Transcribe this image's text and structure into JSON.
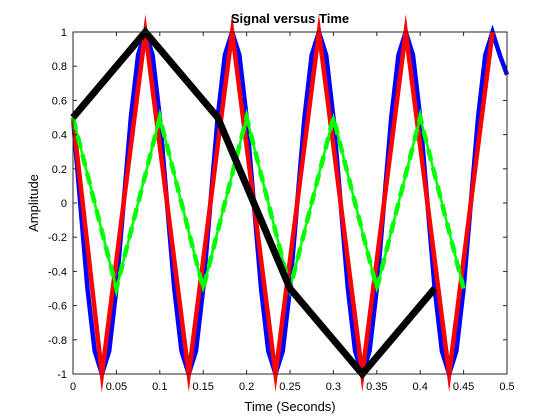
{
  "chart_data": {
    "type": "line",
    "title": "Signal versus Time",
    "xlabel": "Time (Seconds)",
    "ylabel": "Amplitude",
    "xlim": [
      0,
      0.5
    ],
    "ylim": [
      -1,
      1
    ],
    "xticks": [
      0,
      0.05,
      0.1,
      0.15,
      0.2,
      0.25,
      0.3,
      0.35,
      0.4,
      0.45,
      0.5
    ],
    "xtick_labels": [
      "0",
      "0.05",
      "0.1",
      "0.15",
      "0.2",
      "0.25",
      "0.3",
      "0.35",
      "0.4",
      "0.45",
      "0.5"
    ],
    "yticks": [
      -1,
      -0.8,
      -0.6,
      -0.4,
      -0.2,
      0,
      0.2,
      0.4,
      0.6,
      0.8,
      1
    ],
    "ytick_labels": [
      "-1",
      "-0.8",
      "-0.6",
      "-0.4",
      "-0.2",
      "0",
      "0.2",
      "0.4",
      "0.6",
      "0.8",
      "1"
    ],
    "grid": false,
    "legend": "none",
    "series": [
      {
        "color": "#0000ff",
        "style": "solid",
        "weight": "thick",
        "x": [
          0,
          0.00833,
          0.01667,
          0.025,
          0.03333,
          0.04167,
          0.05,
          0.05833,
          0.06667,
          0.075,
          0.08333,
          0.09167,
          0.1,
          0.10833,
          0.11667,
          0.125,
          0.13333,
          0.14167,
          0.15,
          0.15833,
          0.16667,
          0.175,
          0.18333,
          0.19167,
          0.2,
          0.20833,
          0.21667,
          0.225,
          0.23333,
          0.24167,
          0.25,
          0.25833,
          0.26667,
          0.275,
          0.28333,
          0.29167,
          0.3,
          0.30833,
          0.31667,
          0.325,
          0.33333,
          0.34167,
          0.35,
          0.35833,
          0.36667,
          0.375,
          0.38333,
          0.39167,
          0.4,
          0.40833,
          0.41667,
          0.425,
          0.43333,
          0.44167,
          0.45,
          0.45833,
          0.46667,
          0.475,
          0.48333,
          0.49167,
          0.5
        ],
        "y": [
          0.5,
          0,
          -0.5,
          -0.866,
          -1,
          -0.866,
          -0.5,
          0,
          0.5,
          0.866,
          1,
          0.866,
          0.5,
          0,
          -0.5,
          -0.866,
          -1,
          -0.866,
          -0.5,
          0,
          0.5,
          0.866,
          1,
          0.866,
          0.5,
          0,
          -0.5,
          -0.866,
          -1,
          -0.866,
          -0.5,
          0,
          0.5,
          0.866,
          1,
          0.866,
          0.5,
          0,
          -0.5,
          -0.866,
          -1,
          -0.866,
          -0.5,
          0,
          0.5,
          0.866,
          1,
          0.866,
          0.5,
          0,
          -0.5,
          -0.866,
          -1,
          -0.866,
          -0.5,
          0,
          0.5,
          0.866,
          1,
          0.866,
          0.75
        ]
      },
      {
        "color": "#ff0000",
        "style": "solid",
        "weight": "thick",
        "x": [
          0,
          0.03333,
          0.08333,
          0.13333,
          0.18333,
          0.23333,
          0.28333,
          0.33333,
          0.38333,
          0.43333,
          0.48333
        ],
        "y": [
          0.5,
          -1,
          1,
          -1,
          1,
          -1,
          1,
          -1,
          1,
          -1,
          1
        ]
      },
      {
        "color": "#00ff00",
        "style": "solid",
        "weight": "normal",
        "x": [
          0,
          0.05,
          0.1,
          0.15,
          0.2,
          0.25,
          0.3,
          0.35,
          0.4,
          0.45
        ],
        "y": [
          0.5,
          -0.5,
          0.5,
          -0.5,
          0.5,
          -0.5,
          0.5,
          -0.5,
          0.5,
          -0.5
        ]
      },
      {
        "color": "#00ff00",
        "style": "dashed",
        "weight": "thick",
        "x": [
          0,
          0.05,
          0.1,
          0.15,
          0.2,
          0.25,
          0.3,
          0.35,
          0.4,
          0.45
        ],
        "y": [
          0.5,
          -0.5,
          0.5,
          -0.5,
          0.5,
          -0.5,
          0.5,
          -0.5,
          0.5,
          -0.5
        ]
      },
      {
        "color": "#000000",
        "style": "solid",
        "weight": "heavy",
        "x": [
          0,
          0.08333,
          0.16667,
          0.25,
          0.33333,
          0.41667
        ],
        "y": [
          0.5,
          1,
          0.5,
          -0.5,
          -1,
          -0.5
        ]
      }
    ]
  }
}
